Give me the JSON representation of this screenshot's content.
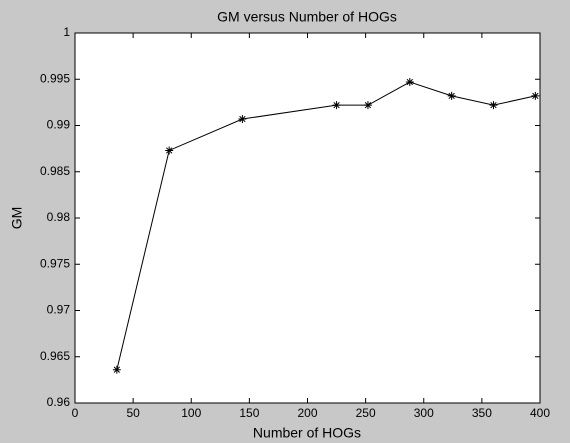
{
  "chart_data": {
    "type": "line",
    "title": "GM versus Number of HOGs",
    "xlabel": "Number of HOGs",
    "ylabel": "GM",
    "x": [
      36,
      81,
      144,
      225,
      252,
      288,
      324,
      360,
      396
    ],
    "series": [
      {
        "name": "GM",
        "color": "#000000",
        "values": [
          0.9636,
          0.9873,
          0.9907,
          0.9922,
          0.9922,
          0.9947,
          0.9932,
          0.9922,
          0.9932
        ]
      }
    ],
    "xlim": [
      0,
      400
    ],
    "xticks": [
      0,
      50,
      100,
      150,
      200,
      250,
      300,
      350,
      400
    ],
    "ylim": [
      0.96,
      1
    ],
    "yticks": [
      0.96,
      0.965,
      0.97,
      0.975,
      0.98,
      0.985,
      0.99,
      0.995,
      1
    ],
    "grid": false,
    "marker": "*"
  }
}
